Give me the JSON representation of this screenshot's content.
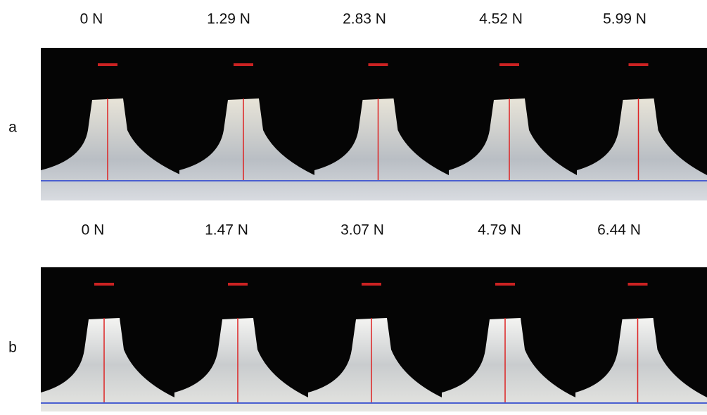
{
  "rows": [
    {
      "label": "a",
      "forces": [
        "0 N",
        "1.29 N",
        "2.83 N",
        "4.52 N",
        "5.99 N"
      ]
    },
    {
      "label": "b",
      "forces": [
        "0 N",
        "1.47 N",
        "3.07 N",
        "4.79 N",
        "6.44 N"
      ]
    }
  ]
}
